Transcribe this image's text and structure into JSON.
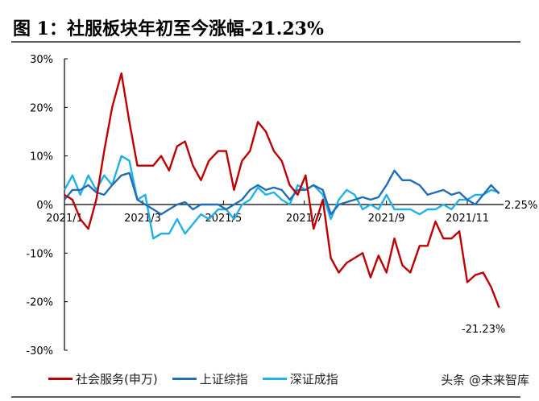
{
  "title": "图 1：社服板块年初至今涨幅-21.23%",
  "watermark": "头条 @未来智库",
  "chart_data": {
    "type": "line",
    "title": "图 1：社服板块年初至今涨幅-21.23%",
    "xlabel": "",
    "ylabel": "",
    "ylim": [
      -30,
      30
    ],
    "yticks": [
      "30%",
      "20%",
      "10%",
      "0%",
      "-10%",
      "-20%",
      "-30%"
    ],
    "xticks": [
      "2021/1",
      "2021/3",
      "2021/5",
      "2021/7",
      "2021/9",
      "2021/11"
    ],
    "grid": false,
    "legend_position": "bottom",
    "x": [
      "2021-01-01",
      "2021-01-07",
      "2021-01-13",
      "2021-01-19",
      "2021-01-25",
      "2021-01-31",
      "2021-02-06",
      "2021-02-13",
      "2021-02-19",
      "2021-02-25",
      "2021-03-03",
      "2021-03-09",
      "2021-03-15",
      "2021-03-21",
      "2021-03-27",
      "2021-04-02",
      "2021-04-08",
      "2021-04-14",
      "2021-04-20",
      "2021-04-27",
      "2021-05-03",
      "2021-05-09",
      "2021-05-15",
      "2021-05-21",
      "2021-05-27",
      "2021-06-02",
      "2021-06-08",
      "2021-06-14",
      "2021-06-20",
      "2021-06-26",
      "2021-07-02",
      "2021-07-08",
      "2021-07-15",
      "2021-07-21",
      "2021-07-27",
      "2021-08-02",
      "2021-08-08",
      "2021-08-14",
      "2021-08-20",
      "2021-08-26",
      "2021-09-01",
      "2021-09-07",
      "2021-09-13",
      "2021-09-19",
      "2021-09-26",
      "2021-10-02",
      "2021-10-08",
      "2021-10-14",
      "2021-10-20",
      "2021-10-26",
      "2021-11-01",
      "2021-11-07",
      "2021-11-13",
      "2021-11-19",
      "2021-11-25"
    ],
    "series": [
      {
        "name": "社会服务(申万)",
        "color": "#C00000",
        "values": [
          2,
          1,
          -3,
          -5,
          1,
          11,
          20,
          27,
          17,
          8,
          8,
          8,
          10,
          7,
          12,
          13,
          8,
          5,
          9,
          11,
          11,
          3,
          9,
          11,
          17,
          15,
          11,
          9,
          4,
          2,
          6,
          -5,
          1,
          -11,
          -14,
          -12,
          -11,
          -10,
          -15,
          -10.5,
          -14,
          -7,
          -12.5,
          -14,
          -8.5,
          -8.5,
          -3.5,
          -7,
          -7,
          -5.5,
          -16,
          -14.5,
          -14,
          -17,
          -21.23
        ]
      },
      {
        "name": "上证综指",
        "color": "#1F6EB8",
        "values": [
          1,
          3,
          3,
          4,
          2.5,
          2,
          4,
          6,
          6.5,
          1,
          0,
          -1,
          -2,
          -1,
          0,
          0.5,
          -1,
          0,
          0,
          0,
          -1,
          0,
          1,
          3,
          4,
          3,
          3.5,
          3,
          1,
          3,
          3,
          4,
          3,
          -2,
          0,
          0.5,
          1,
          1.5,
          1,
          1.5,
          4,
          7,
          5,
          5,
          4,
          2,
          2.5,
          3,
          2,
          2.5,
          1,
          0,
          2,
          4,
          2.25
        ]
      },
      {
        "name": "深证成指",
        "color": "#20B0E8",
        "values": [
          3,
          6,
          2,
          6,
          3,
          6,
          4,
          10,
          9,
          1,
          2,
          -7,
          -6,
          -6,
          -3,
          -6,
          -4,
          -2,
          -3,
          -1,
          -1,
          -3,
          0,
          1,
          3.5,
          2,
          2.5,
          1,
          0,
          4,
          3,
          4,
          2,
          -3,
          1,
          3,
          2,
          -1,
          0,
          -1,
          2,
          -1,
          -1,
          -1,
          -2,
          -1,
          -1,
          0,
          -1,
          1,
          1,
          2,
          2,
          3,
          2.5
        ]
      }
    ],
    "annotations": [
      "2.25%",
      "-21.23%"
    ]
  }
}
